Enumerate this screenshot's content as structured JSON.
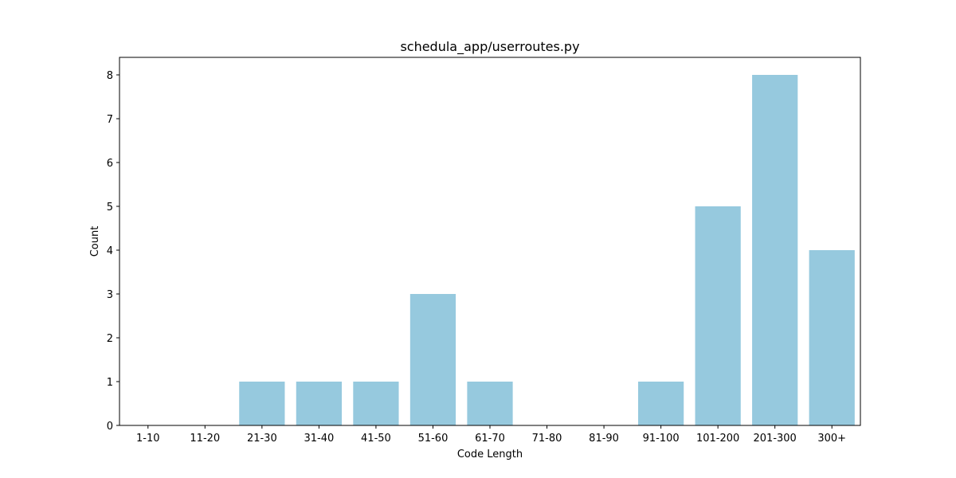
{
  "chart_data": {
    "type": "bar",
    "title": "schedula_app/userroutes.py",
    "xlabel": "Code Length",
    "ylabel": "Count",
    "categories": [
      "1-10",
      "11-20",
      "21-30",
      "31-40",
      "41-50",
      "51-60",
      "61-70",
      "71-80",
      "81-90",
      "91-100",
      "101-200",
      "201-300",
      "300+"
    ],
    "values": [
      0,
      0,
      1,
      1,
      1,
      3,
      1,
      0,
      0,
      1,
      5,
      8,
      4
    ],
    "ylim": [
      0,
      8.4
    ],
    "yticks": [
      0,
      1,
      2,
      3,
      4,
      5,
      6,
      7,
      8
    ],
    "grid": false,
    "legend": "none",
    "bar_color": "#96c9de"
  }
}
